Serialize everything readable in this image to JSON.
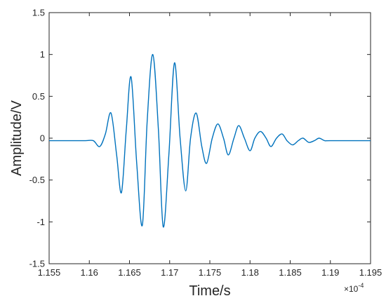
{
  "chart_data": {
    "type": "line",
    "title": "",
    "xlabel": "Time/s",
    "ylabel": "Amplitude/V",
    "x_exponent_label": "×10",
    "x_exponent_power": "-4",
    "xlim": [
      1.155,
      1.195
    ],
    "ylim": [
      -1.5,
      1.5
    ],
    "x_ticks": [
      1.155,
      1.16,
      1.165,
      1.17,
      1.175,
      1.18,
      1.185,
      1.19,
      1.195
    ],
    "x_tick_labels": [
      "1.155",
      "1.16",
      "1.165",
      "1.17",
      "1.175",
      "1.18",
      "1.185",
      "1.19",
      "1.195"
    ],
    "y_ticks": [
      -1.5,
      -1,
      -0.5,
      0,
      0.5,
      1,
      1.5
    ],
    "y_tick_labels": [
      "-1.5",
      "-1",
      "-0.5",
      "0",
      "0.5",
      "1",
      "1.5"
    ],
    "grid": false,
    "line_color": "#0072BD",
    "series": [
      {
        "x": [
          1.155,
          1.1575,
          1.1595,
          1.1605,
          1.1613,
          1.162,
          1.1627,
          1.1634,
          1.164,
          1.1646,
          1.1652,
          1.1659,
          1.1666,
          1.1672,
          1.1679,
          1.1686,
          1.1692,
          1.1699,
          1.1706,
          1.1713,
          1.172,
          1.1726,
          1.1733,
          1.174,
          1.1746,
          1.1753,
          1.176,
          1.1767,
          1.1773,
          1.178,
          1.1786,
          1.1793,
          1.18,
          1.1806,
          1.1813,
          1.182,
          1.1826,
          1.1833,
          1.184,
          1.1846,
          1.1853,
          1.186,
          1.1866,
          1.1873,
          1.188,
          1.1886,
          1.1893,
          1.19,
          1.195
        ],
        "y": [
          -0.03,
          -0.03,
          -0.03,
          -0.03,
          -0.1,
          0.05,
          0.3,
          -0.2,
          -0.65,
          0.1,
          0.73,
          -0.3,
          -1.04,
          0.2,
          1.0,
          0.1,
          -1.06,
          -0.2,
          0.9,
          0.0,
          -0.63,
          0.0,
          0.3,
          -0.1,
          -0.3,
          0.0,
          0.17,
          0.0,
          -0.2,
          0.0,
          0.15,
          0.0,
          -0.15,
          0.0,
          0.08,
          0.0,
          -0.1,
          0.0,
          0.05,
          -0.03,
          -0.08,
          -0.03,
          0.0,
          -0.05,
          -0.03,
          0.0,
          -0.03,
          -0.03,
          -0.03
        ]
      }
    ]
  }
}
